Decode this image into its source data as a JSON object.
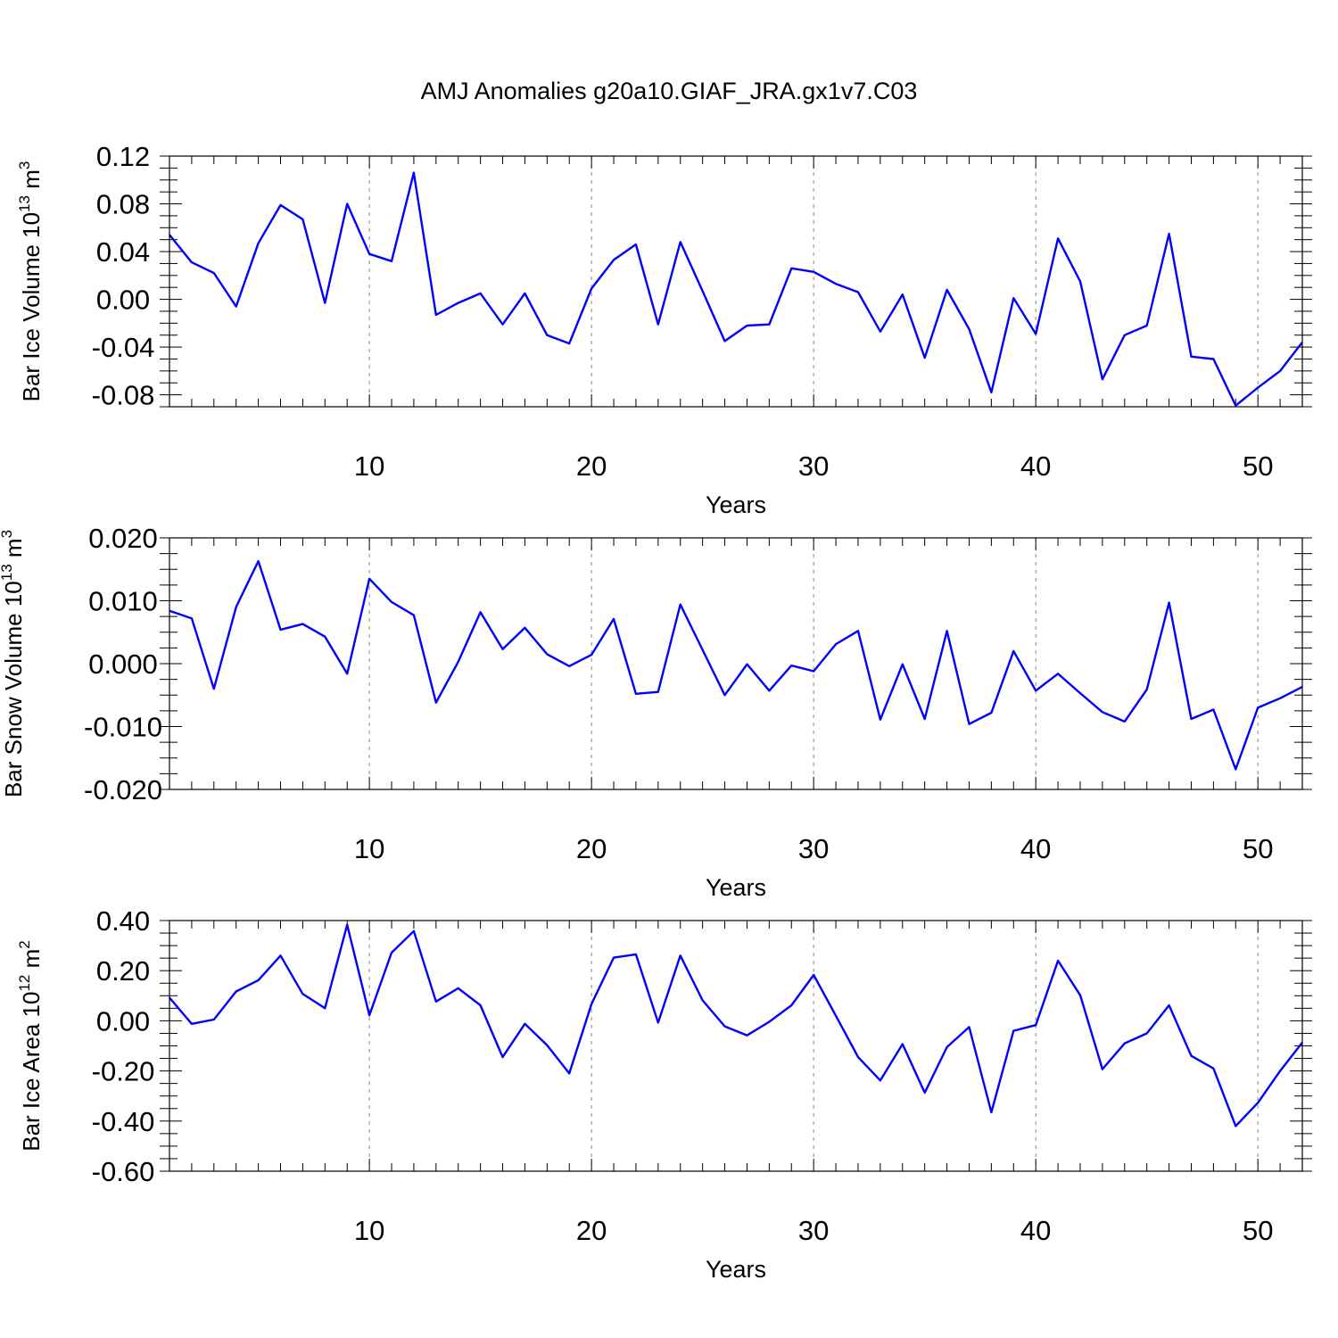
{
  "figure_title": "AMJ Anomalies g20a10.GIAF_JRA.gx1v7.C03",
  "chart_data": [
    {
      "type": "line",
      "title": "AMJ Anomalies g20a10.GIAF_JRA.gx1v7.C03",
      "xlabel": "Years",
      "ylabel": {
        "main": "Bar Ice Volume 10",
        "exp": "13",
        "unit": " m",
        "unit_exp": "3"
      },
      "xlim": [
        1,
        52
      ],
      "ylim": [
        -0.09,
        0.12
      ],
      "x_ticks": [
        10,
        20,
        30,
        40,
        50
      ],
      "x_tick_labels": [
        "10",
        "20",
        "30",
        "40",
        "50"
      ],
      "y_ticks": [
        0.12,
        0.08,
        0.04,
        0.0,
        -0.04,
        -0.08
      ],
      "y_tick_labels": [
        "0.12",
        "0.08",
        "0.04",
        "0.00",
        "-0.04",
        "-0.08"
      ],
      "grid": "vertical dashed at major x ticks",
      "color": "#0000ff",
      "series": [
        {
          "name": "Bar Ice Volume",
          "x_start": 1,
          "values": [
            0.054,
            0.031,
            0.022,
            -0.006,
            0.047,
            0.079,
            0.067,
            -0.003,
            0.08,
            0.038,
            0.032,
            0.106,
            -0.013,
            -0.003,
            0.005,
            -0.021,
            0.005,
            -0.03,
            -0.037,
            0.009,
            0.033,
            0.046,
            -0.021,
            0.048,
            0.007,
            -0.035,
            -0.022,
            -0.021,
            0.026,
            0.023,
            0.013,
            0.006,
            -0.027,
            0.004,
            -0.049,
            0.008,
            -0.025,
            -0.078,
            0.001,
            -0.029,
            0.051,
            0.015,
            -0.067,
            -0.03,
            -0.022,
            0.055,
            -0.048,
            -0.05,
            -0.089,
            -0.074,
            -0.06,
            -0.036
          ]
        }
      ]
    },
    {
      "type": "line",
      "xlabel": "Years",
      "ylabel": {
        "main": "Bar Snow Volume 10",
        "exp": "13",
        "unit": " m",
        "unit_exp": "3"
      },
      "xlim": [
        1,
        52
      ],
      "ylim": [
        -0.02,
        0.02
      ],
      "x_ticks": [
        10,
        20,
        30,
        40,
        50
      ],
      "x_tick_labels": [
        "10",
        "20",
        "30",
        "40",
        "50"
      ],
      "y_ticks": [
        0.02,
        0.01,
        0.0,
        -0.01,
        -0.02
      ],
      "y_tick_labels": [
        "0.020",
        "0.010",
        "0.000",
        "-0.010",
        "-0.020"
      ],
      "grid": "vertical dashed at major x ticks",
      "color": "#0000ff",
      "series": [
        {
          "name": "Bar Snow Volume",
          "x_start": 1,
          "values": [
            0.0084,
            0.0072,
            -0.004,
            0.009,
            0.0163,
            0.0054,
            0.0063,
            0.0043,
            -0.0016,
            0.0135,
            0.0098,
            0.0077,
            -0.0062,
            0.0003,
            0.0082,
            0.0023,
            0.0057,
            0.0015,
            -0.0004,
            0.0014,
            0.0071,
            -0.0048,
            -0.0045,
            0.0094,
            0.0022,
            -0.005,
            -0.0001,
            -0.0043,
            -0.0003,
            -0.0012,
            0.0031,
            0.0052,
            -0.0089,
            -0.0001,
            -0.0088,
            0.0052,
            -0.0096,
            -0.0078,
            0.002,
            -0.0043,
            -0.0016,
            -0.0047,
            -0.0077,
            -0.0092,
            -0.0041,
            0.0097,
            -0.0088,
            -0.0073,
            -0.0168,
            -0.007,
            -0.0055,
            -0.0037
          ]
        }
      ]
    },
    {
      "type": "line",
      "xlabel": "Years",
      "ylabel": {
        "main": "Bar Ice Area 10",
        "exp": "12",
        "unit": " m",
        "unit_exp": "2"
      },
      "xlim": [
        1,
        52
      ],
      "ylim": [
        -0.6,
        0.4
      ],
      "x_ticks": [
        10,
        20,
        30,
        40,
        50
      ],
      "x_tick_labels": [
        "10",
        "20",
        "30",
        "40",
        "50"
      ],
      "y_ticks": [
        0.4,
        0.2,
        0.0,
        -0.2,
        -0.4,
        -0.6
      ],
      "y_tick_labels": [
        "0.40",
        "0.20",
        "0.00",
        "-0.20",
        "-0.40",
        "-0.60"
      ],
      "grid": "vertical dashed at major x ticks",
      "color": "#0000ff",
      "series": [
        {
          "name": "Bar Ice Area",
          "x_start": 1,
          "values": [
            0.092,
            -0.012,
            0.005,
            0.117,
            0.162,
            0.26,
            0.107,
            0.05,
            0.383,
            0.022,
            0.272,
            0.358,
            0.077,
            0.13,
            0.062,
            -0.145,
            -0.012,
            -0.097,
            -0.21,
            0.067,
            0.252,
            0.265,
            -0.007,
            0.26,
            0.082,
            -0.022,
            -0.058,
            -0.004,
            0.062,
            0.183,
            0.02,
            -0.145,
            -0.238,
            -0.093,
            -0.287,
            -0.105,
            -0.025,
            -0.365,
            -0.04,
            -0.017,
            0.24,
            0.102,
            -0.193,
            -0.09,
            -0.05,
            0.062,
            -0.14,
            -0.19,
            -0.42,
            -0.327,
            -0.2,
            -0.087
          ]
        }
      ]
    }
  ]
}
